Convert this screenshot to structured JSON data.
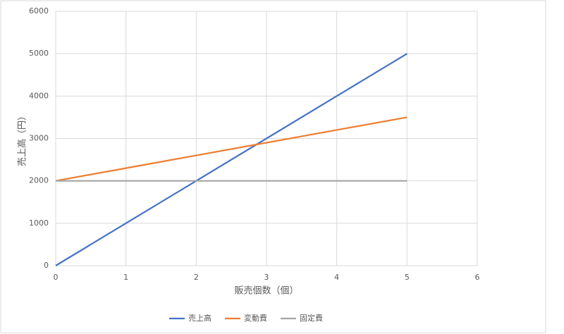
{
  "chart_data": {
    "type": "line",
    "x": [
      0,
      1,
      2,
      3,
      4,
      5
    ],
    "series": [
      {
        "name": "売上高",
        "color": "#4472c4",
        "values": [
          0,
          1000,
          2000,
          3000,
          4000,
          5000
        ]
      },
      {
        "name": "変動費",
        "color": "#ed7d31",
        "values": [
          2000,
          2300,
          2600,
          2900,
          3200,
          3500
        ]
      },
      {
        "name": "固定費",
        "color": "#a5a5a5",
        "values": [
          2000,
          2000,
          2000,
          2000,
          2000,
          2000
        ]
      }
    ],
    "xlabel": "販売個数（個）",
    "ylabel": "売上高（円）",
    "xlim": [
      0,
      6
    ],
    "xticks": [
      0,
      1,
      2,
      3,
      4,
      5,
      6
    ],
    "ylim": [
      0,
      6000
    ],
    "yticks": [
      0,
      1000,
      2000,
      3000,
      4000,
      5000,
      6000
    ],
    "grid": true,
    "legend": "bottom"
  }
}
